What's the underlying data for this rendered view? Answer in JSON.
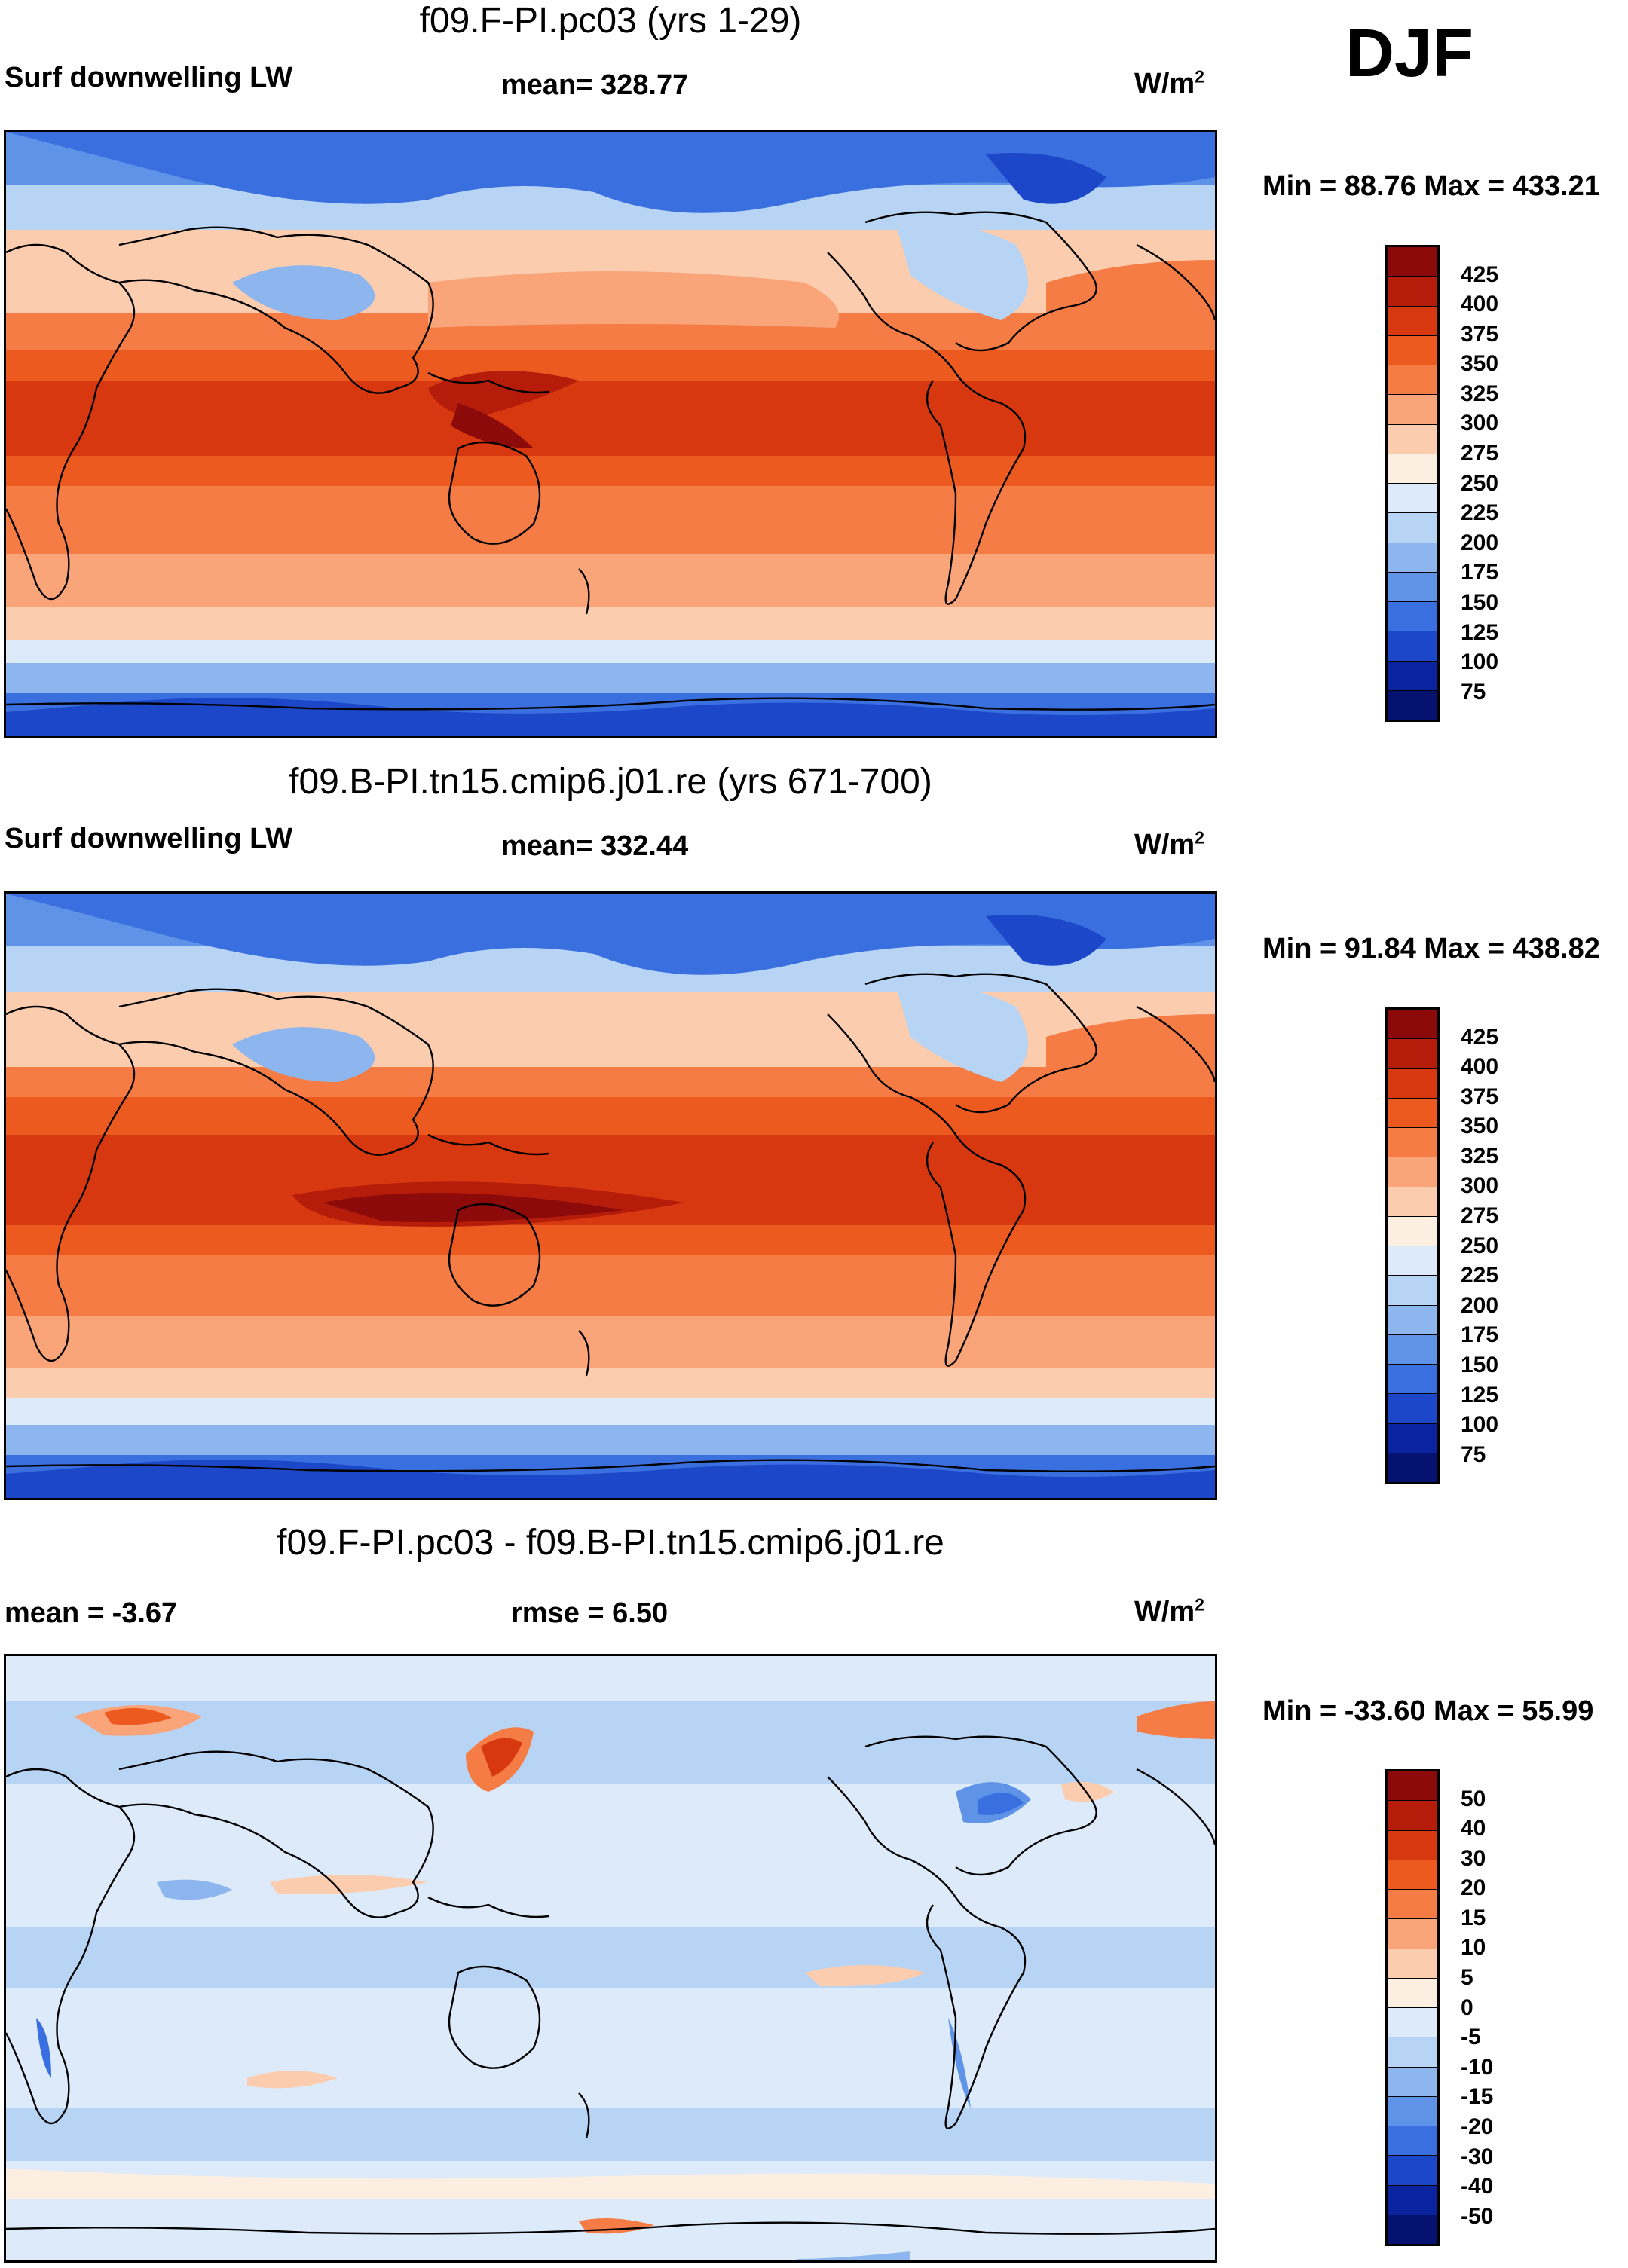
{
  "season": "DJF",
  "panels": [
    {
      "title": "f09.F-PI.pc03 (yrs 1-29)",
      "left_label": "Surf downwelling LW",
      "center_label": "mean= 328.77",
      "unit_base": "W/m",
      "unit_exp": "2",
      "minmax": "Min =  88.76 Max = 433.21",
      "colorbar": {
        "labels": [
          "425",
          "400",
          "375",
          "350",
          "325",
          "300",
          "275",
          "250",
          "225",
          "200",
          "175",
          "150",
          "125",
          "100",
          "75"
        ],
        "colors": [
          "#8c0a0a",
          "#b51d0a",
          "#d8380f",
          "#ed5a20",
          "#f57c45",
          "#f9a479",
          "#fcccae",
          "#fdeee2",
          "#dceafa",
          "#b8d4f5",
          "#8db6ef",
          "#5e93e8",
          "#3a6fe0",
          "#1c47c9",
          "#0a24a0",
          "#05126f"
        ]
      },
      "map_kind": "abs"
    },
    {
      "title": "f09.B-PI.tn15.cmip6.j01.re (yrs 671-700)",
      "left_label": "Surf downwelling LW",
      "center_label": "mean= 332.44",
      "unit_base": "W/m",
      "unit_exp": "2",
      "minmax": "Min =  91.84 Max = 438.82",
      "colorbar": {
        "labels": [
          "425",
          "400",
          "375",
          "350",
          "325",
          "300",
          "275",
          "250",
          "225",
          "200",
          "175",
          "150",
          "125",
          "100",
          "75"
        ],
        "colors": [
          "#8c0a0a",
          "#b51d0a",
          "#d8380f",
          "#ed5a20",
          "#f57c45",
          "#f9a479",
          "#fcccae",
          "#fdeee2",
          "#dceafa",
          "#b8d4f5",
          "#8db6ef",
          "#5e93e8",
          "#3a6fe0",
          "#1c47c9",
          "#0a24a0",
          "#05126f"
        ]
      },
      "map_kind": "abs"
    },
    {
      "title": "f09.F-PI.pc03 - f09.B-PI.tn15.cmip6.j01.re",
      "left_label": "mean =  -3.67",
      "center_label": "rmse =   6.50",
      "unit_base": "W/m",
      "unit_exp": "2",
      "minmax": "Min = -33.60 Max =  55.99",
      "colorbar": {
        "labels": [
          "50",
          "40",
          "30",
          "20",
          "15",
          "10",
          "5",
          "0",
          "-5",
          "-10",
          "-15",
          "-20",
          "-30",
          "-40",
          "-50"
        ],
        "colors": [
          "#8c0a0a",
          "#b51d0a",
          "#d8380f",
          "#ed5a20",
          "#f57c45",
          "#f9a479",
          "#fcccae",
          "#fdeee2",
          "#dceafa",
          "#b8d4f5",
          "#8db6ef",
          "#5e93e8",
          "#3a6fe0",
          "#1c47c9",
          "#0a24a0",
          "#05126f"
        ]
      },
      "map_kind": "diff"
    }
  ]
}
